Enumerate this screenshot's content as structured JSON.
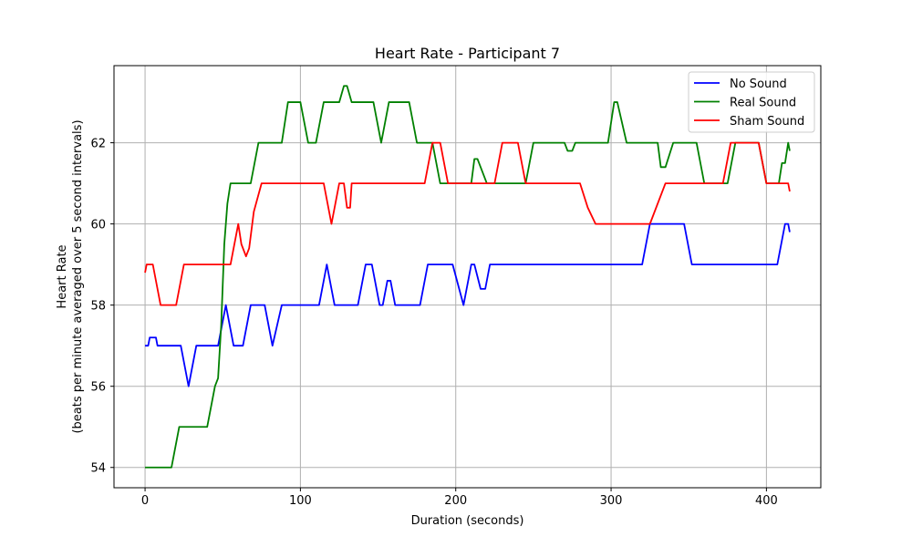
{
  "chart_data": {
    "type": "line",
    "title": "Heart Rate - Participant 7",
    "xlabel": "Duration (seconds)",
    "ylabel_lines": [
      "Heart Rate",
      "(beats per minute averaged over 5 second intervals)"
    ],
    "xlim": [
      -20,
      435
    ],
    "ylim": [
      53.5,
      63.9
    ],
    "xticks": [
      0,
      100,
      200,
      300,
      400
    ],
    "yticks": [
      54,
      56,
      58,
      60,
      62
    ],
    "grid": true,
    "legend_position": "top-right",
    "series": [
      {
        "name": "No Sound",
        "color": "#0000ff",
        "x": [
          0,
          2,
          3,
          5,
          7,
          8,
          10,
          23,
          28,
          33,
          35,
          47,
          52,
          57,
          63,
          68,
          77,
          82,
          88,
          112,
          117,
          122,
          137,
          142,
          146,
          151,
          153,
          156,
          158,
          161,
          177,
          182,
          198,
          205,
          210,
          212,
          216,
          219,
          222,
          320,
          325,
          347,
          352,
          362,
          367,
          407,
          412,
          414,
          415
        ],
        "y": [
          57,
          57,
          57.2,
          57.2,
          57.2,
          57,
          57,
          57,
          56,
          57,
          57,
          57,
          58,
          57,
          57,
          58,
          58,
          57,
          58,
          58,
          59,
          58,
          58,
          59,
          59,
          58,
          58,
          58.6,
          58.6,
          58,
          58,
          59,
          59,
          58,
          59,
          59,
          58.4,
          58.4,
          59,
          59,
          60,
          60,
          59,
          59,
          59,
          59,
          60,
          60,
          59.8
        ]
      },
      {
        "name": "Real Sound",
        "color": "#008000",
        "x": [
          0,
          17,
          22,
          40,
          45,
          47,
          49,
          51,
          53,
          55,
          60,
          68,
          73,
          88,
          92,
          100,
          105,
          110,
          115,
          125,
          128,
          130,
          133,
          147,
          152,
          157,
          170,
          175,
          185,
          190,
          210,
          212,
          214,
          220,
          245,
          250,
          270,
          272,
          275,
          277,
          298,
          302,
          304,
          310,
          330,
          332,
          335,
          340,
          355,
          360,
          375,
          380,
          395,
          400,
          408,
          410,
          412,
          414,
          415
        ],
        "y": [
          54,
          54,
          55,
          55,
          56,
          56.2,
          57.5,
          59.5,
          60.5,
          61,
          61,
          61,
          62,
          62,
          63,
          63,
          62,
          62,
          63,
          63,
          63.4,
          63.4,
          63,
          63,
          62,
          63,
          63,
          62,
          62,
          61,
          61,
          61.6,
          61.6,
          61,
          61,
          62,
          62,
          61.8,
          61.8,
          62,
          62,
          63,
          63,
          62,
          62,
          61.4,
          61.4,
          62,
          62,
          61,
          61,
          62,
          62,
          61,
          61,
          61.5,
          61.5,
          62,
          61.8
        ]
      },
      {
        "name": "Sham Sound",
        "color": "#ff0000",
        "x": [
          0,
          1,
          3,
          5,
          10,
          20,
          25,
          55,
          60,
          62,
          65,
          67,
          70,
          75,
          115,
          120,
          125,
          127,
          128,
          130,
          132,
          133,
          135,
          138,
          180,
          185,
          190,
          195,
          205,
          220,
          225,
          230,
          240,
          245,
          260,
          280,
          285,
          290,
          295,
          325,
          335,
          340,
          368,
          372,
          377,
          390,
          395,
          400,
          410,
          412,
          414,
          415
        ],
        "y": [
          58.8,
          59,
          59,
          59,
          58,
          58,
          59,
          59,
          60,
          59.5,
          59.2,
          59.4,
          60.3,
          61,
          61,
          60,
          61,
          61,
          61,
          60.4,
          60.4,
          61,
          61,
          61,
          61,
          62,
          62,
          61,
          61,
          61,
          61,
          62,
          62,
          61,
          61,
          61,
          60.4,
          60,
          60,
          60,
          61,
          61,
          61,
          61,
          62,
          62,
          62,
          61,
          61,
          61,
          61,
          60.8
        ]
      }
    ]
  }
}
